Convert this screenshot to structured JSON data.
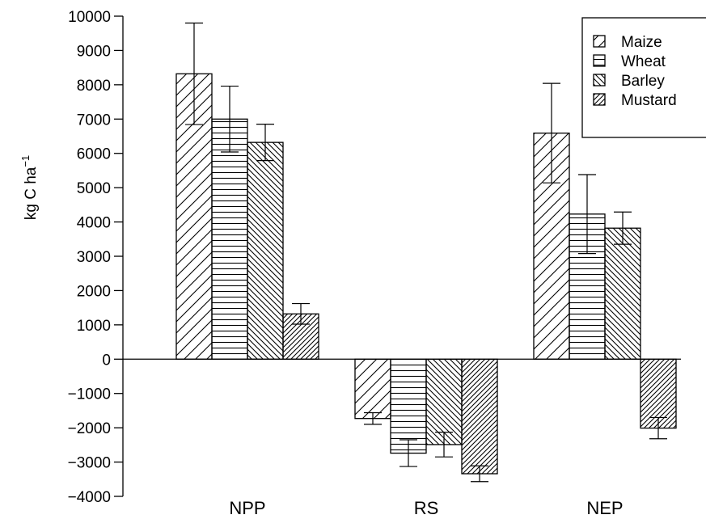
{
  "chart_data": {
    "type": "bar",
    "categories": [
      "NPP",
      "RS",
      "NEP"
    ],
    "series": [
      {
        "name": "Maize",
        "pattern": "diag-up",
        "values": [
          8320,
          -1730,
          6590
        ],
        "error": [
          1480,
          170,
          1450
        ]
      },
      {
        "name": "Wheat",
        "pattern": "horizontal",
        "values": [
          7000,
          -2740,
          4230
        ],
        "error": [
          960,
          390,
          1150
        ]
      },
      {
        "name": "Barley",
        "pattern": "diag-down",
        "values": [
          6320,
          -2490,
          3820
        ],
        "error": [
          530,
          360,
          470
        ]
      },
      {
        "name": "Mustard",
        "pattern": "diag-up-dense",
        "values": [
          1320,
          -3340,
          -2010
        ],
        "error": [
          300,
          230,
          310
        ]
      }
    ],
    "title": "",
    "xlabel": "",
    "ylabel": "kg C ha",
    "ylabel_superscript": "−1",
    "ylim": [
      -4000,
      10000
    ],
    "yticks": [
      -4000,
      -3000,
      -2000,
      -1000,
      0,
      1000,
      2000,
      3000,
      4000,
      5000,
      6000,
      7000,
      8000,
      9000,
      10000
    ],
    "ytick_labels": [
      "−4000",
      "−3000",
      "−2000",
      "−1000",
      "0",
      "1000",
      "2000",
      "3000",
      "4000",
      "5000",
      "6000",
      "7000",
      "8000",
      "9000",
      "10000"
    ],
    "grid": false,
    "legend_position": "top-right",
    "colors": {
      "stroke": "#000000",
      "background": "#ffffff"
    }
  }
}
